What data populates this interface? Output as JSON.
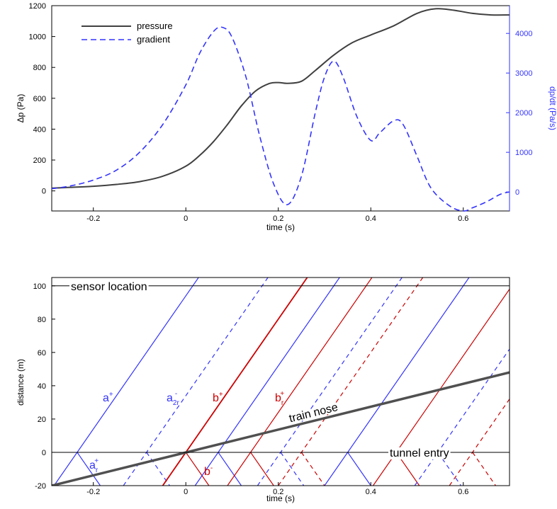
{
  "chart_data": [
    {
      "type": "line",
      "xlabel": "time (s)",
      "ylabel": "Δp (Pa)",
      "y2label": "dp/dt (Pa/s)",
      "xlim": [
        -0.29,
        0.7
      ],
      "ylim": [
        -130,
        1200
      ],
      "y2lim": [
        -480,
        4700
      ],
      "xticks": [
        -0.2,
        0,
        0.2,
        0.4,
        0.6
      ],
      "yticks": [
        0,
        200,
        400,
        600,
        800,
        1000,
        1200
      ],
      "y2ticks": [
        0,
        1000,
        2000,
        3000,
        4000
      ],
      "legend_position": "top-left",
      "series": [
        {
          "name": "pressure",
          "axis": "left",
          "style": "solid",
          "color": "#404040",
          "x": [
            -0.29,
            -0.25,
            -0.2,
            -0.15,
            -0.1,
            -0.05,
            0,
            0.03,
            0.06,
            0.09,
            0.12,
            0.15,
            0.18,
            0.2,
            0.22,
            0.25,
            0.28,
            0.32,
            0.36,
            0.4,
            0.45,
            0.5,
            0.54,
            0.58,
            0.62,
            0.66,
            0.7
          ],
          "y": [
            18,
            23,
            30,
            42,
            60,
            95,
            160,
            230,
            320,
            430,
            550,
            645,
            695,
            702,
            697,
            710,
            780,
            880,
            960,
            1010,
            1070,
            1150,
            1180,
            1170,
            1150,
            1140,
            1140
          ]
        },
        {
          "name": "gradient",
          "axis": "right",
          "style": "dashed",
          "color": "#3333ff",
          "x": [
            -0.29,
            -0.25,
            -0.2,
            -0.15,
            -0.1,
            -0.05,
            0,
            0.03,
            0.06,
            0.08,
            0.1,
            0.13,
            0.16,
            0.19,
            0.22,
            0.25,
            0.28,
            0.3,
            0.32,
            0.34,
            0.37,
            0.4,
            0.42,
            0.45,
            0.47,
            0.5,
            0.53,
            0.57,
            0.6,
            0.62,
            0.65,
            0.68,
            0.7
          ],
          "y": [
            80,
            150,
            300,
            550,
            1000,
            1700,
            2700,
            3500,
            4050,
            4150,
            3900,
            2900,
            1400,
            200,
            -320,
            400,
            2000,
            2900,
            3300,
            2900,
            1900,
            1300,
            1500,
            1800,
            1700,
            900,
            100,
            -350,
            -480,
            -400,
            -250,
            -60,
            0
          ]
        }
      ]
    },
    {
      "type": "line",
      "xlabel": "time (s)",
      "ylabel": "distance (m)",
      "xlim": [
        -0.29,
        0.7
      ],
      "ylim": [
        -20,
        105
      ],
      "xticks": [
        -0.2,
        0,
        0.2,
        0.4,
        0.6
      ],
      "yticks": [
        -20,
        0,
        20,
        40,
        60,
        80,
        100
      ],
      "reference_lines": [
        {
          "label": "sensor location",
          "y": 100
        },
        {
          "label": "tunnel entry",
          "y": 0
        }
      ],
      "train_nose": {
        "label": "train nose",
        "x": [
          -0.29,
          0.7
        ],
        "y": [
          -20,
          48
        ]
      },
      "characteristics": [
        {
          "color": "blue",
          "style": "solid",
          "x0": -0.235,
          "x1": 0.065
        },
        {
          "color": "blue",
          "style": "dashed",
          "x0": -0.085,
          "x1": 0.215
        },
        {
          "color": "red",
          "style": "solid-thick",
          "x0": 0.0,
          "x1": 0.3
        },
        {
          "color": "blue",
          "style": "solid",
          "x0": 0.07,
          "x1": 0.37
        },
        {
          "color": "red",
          "style": "solid",
          "x0": 0.14,
          "x1": 0.44
        },
        {
          "color": "blue",
          "style": "dashed",
          "x0": 0.205,
          "x1": 0.505
        },
        {
          "color": "red",
          "style": "dashed",
          "x0": 0.25,
          "x1": 0.55
        },
        {
          "color": "blue",
          "style": "solid",
          "x0": 0.35,
          "x1": 0.65
        },
        {
          "color": "red",
          "style": "solid",
          "x0": 0.455,
          "x1": 0.755
        },
        {
          "color": "blue",
          "style": "dashed",
          "x0": 0.545,
          "x1": 0.845
        },
        {
          "color": "red",
          "style": "dashed",
          "x0": 0.62,
          "x1": 0.92
        }
      ],
      "annotations": [
        {
          "text": "a",
          "sup": "+",
          "sub": ""
        },
        {
          "text": "a",
          "sup": "-",
          "sub": "2r"
        },
        {
          "text": "b",
          "sup": "+",
          "sub": ""
        },
        {
          "text": "b",
          "sup": "+",
          "sub": "r"
        },
        {
          "text": "a",
          "sup": "+",
          "sub": "r"
        },
        {
          "text": "b",
          "sup": "-",
          "sub": ""
        }
      ]
    }
  ]
}
